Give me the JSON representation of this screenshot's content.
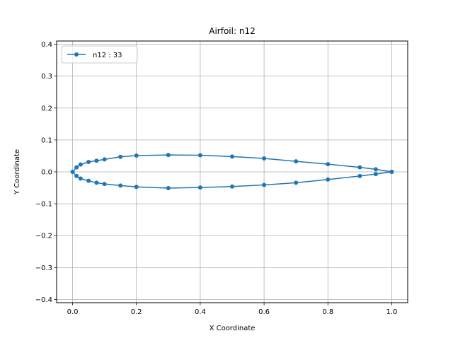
{
  "chart_data": {
    "type": "line",
    "title": "Airfoil: n12",
    "xlabel": "X Coordinate",
    "ylabel": "Y Coordinate",
    "xlim": [
      -0.05,
      1.05
    ],
    "ylim": [
      -0.41,
      0.41
    ],
    "xticks": [
      0.0,
      0.2,
      0.4,
      0.6,
      0.8,
      1.0
    ],
    "xtick_labels": [
      "0.0",
      "0.2",
      "0.4",
      "0.6",
      "0.8",
      "1.0"
    ],
    "yticks": [
      0.4,
      0.3,
      0.2,
      0.1,
      0.0,
      -0.1,
      -0.2,
      -0.3,
      -0.4
    ],
    "ytick_labels": [
      "0.4",
      "0.3",
      "0.2",
      "0.1",
      "0.0",
      "−0.1",
      "−0.2",
      "−0.3",
      "−0.4"
    ],
    "grid": true,
    "legend_position": "top-left",
    "series": [
      {
        "name": "n12 : 33",
        "color": "#1f77b4",
        "marker": "circle",
        "x": [
          1.0,
          0.95,
          0.9,
          0.8,
          0.7,
          0.6,
          0.5,
          0.4,
          0.3,
          0.2,
          0.15,
          0.1,
          0.075,
          0.05,
          0.025,
          0.0125,
          0.0,
          0.0125,
          0.025,
          0.05,
          0.075,
          0.1,
          0.15,
          0.2,
          0.3,
          0.4,
          0.5,
          0.6,
          0.7,
          0.8,
          0.9,
          0.95,
          1.0
        ],
        "y": [
          0.0,
          0.008,
          0.014,
          0.024,
          0.033,
          0.042,
          0.048,
          0.052,
          0.053,
          0.051,
          0.047,
          0.039,
          0.035,
          0.031,
          0.023,
          0.014,
          0.0,
          -0.013,
          -0.021,
          -0.028,
          -0.034,
          -0.038,
          -0.043,
          -0.047,
          -0.051,
          -0.049,
          -0.046,
          -0.041,
          -0.034,
          -0.024,
          -0.013,
          -0.007,
          0.0
        ]
      }
    ]
  }
}
